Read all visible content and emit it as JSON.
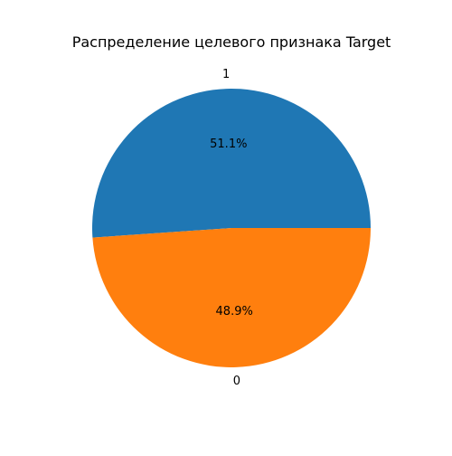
{
  "chart_data": {
    "type": "pie",
    "title": "Распределение целевого признака Target",
    "categories": [
      "1",
      "0"
    ],
    "values": [
      51.1,
      48.9
    ],
    "value_unit": "%",
    "percent_labels": [
      "51.1%",
      "48.9%"
    ],
    "colors": [
      "#1f77b4",
      "#ff7f0e"
    ],
    "start_angle_deg": 0,
    "direction": "counterclockwise",
    "legend": "none"
  }
}
